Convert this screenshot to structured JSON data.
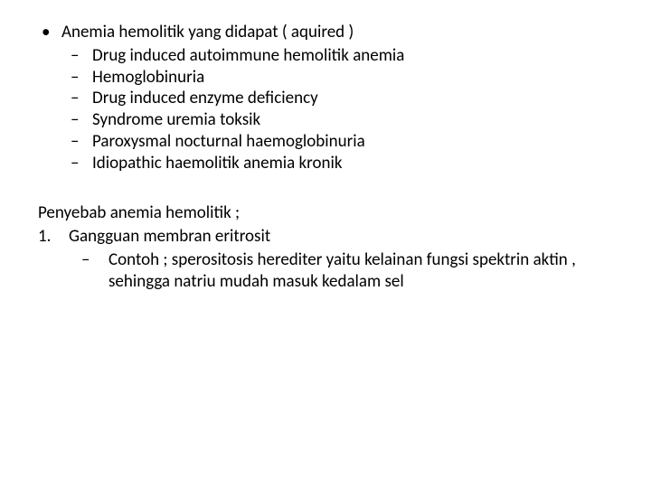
{
  "background_color": "#ffffff",
  "text_color": "#000000",
  "font_family": "Calibri",
  "base_font_size_pt": 14,
  "line_height": 1.25,
  "bullet_level1_glyph": "•",
  "bullet_level2_glyph": "–",
  "list1": {
    "item": "Anemia hemolitik yang didapat ( aquired )",
    "children": [
      "Drug induced autoimmune hemolitik anemia",
      "Hemoglobinuria",
      "Drug induced enzyme deficiency",
      "Syndrome uremia toksik",
      "Paroxysmal nocturnal haemoglobinuria",
      "Idiopathic haemolitik anemia kronik"
    ]
  },
  "paragraph": "Penyebab anemia hemolitik ;",
  "numbered": {
    "item": "Gangguan membran eritrosit",
    "children": [
      "Contoh ; sperositosis herediter yaitu kelainan fungsi spektrin aktin , sehingga natriu mudah masuk kedalam sel"
    ]
  }
}
